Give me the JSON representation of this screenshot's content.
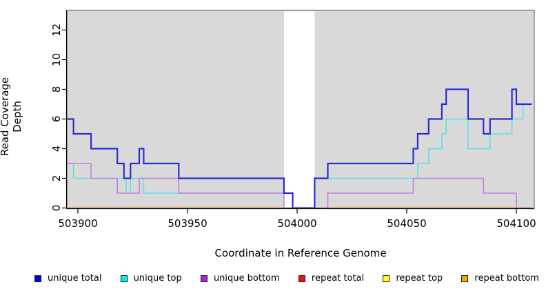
{
  "chart_data": {
    "type": "line",
    "subtype": "step-coverage",
    "title": "",
    "xlabel": "Coordinate in Reference Genome",
    "ylabel": "Read Coverage Depth",
    "xlim": [
      503895,
      504107
    ],
    "ylim": [
      0,
      13.3
    ],
    "x_ticks": [
      503900,
      503950,
      504000,
      504050,
      504100
    ],
    "y_ticks": [
      0,
      2,
      4,
      6,
      8,
      10,
      12
    ],
    "grid": "off",
    "panel_background": "#d9d9d9",
    "gap_region": {
      "from": 503994,
      "to": 504008,
      "color": "#ffffff"
    },
    "border_color": "#777777",
    "axis_color": "#000000",
    "draw_order": [
      3,
      4,
      5,
      1,
      2,
      0
    ],
    "series": [
      {
        "name": "unique total",
        "color": "#2b2bd6",
        "width": 2.2,
        "points": [
          [
            503895,
            6
          ],
          [
            503898,
            5
          ],
          [
            503906,
            4
          ],
          [
            503918,
            3
          ],
          [
            503921,
            2
          ],
          [
            503924,
            3
          ],
          [
            503928,
            4
          ],
          [
            503930,
            3
          ],
          [
            503946,
            2
          ],
          [
            503994,
            1
          ],
          [
            503998,
            0
          ],
          [
            504008,
            2
          ],
          [
            504014,
            3
          ],
          [
            504053,
            4
          ],
          [
            504055,
            5
          ],
          [
            504060,
            6
          ],
          [
            504066,
            7
          ],
          [
            504068,
            8
          ],
          [
            504078,
            6
          ],
          [
            504085,
            5
          ],
          [
            504088,
            6
          ],
          [
            504098,
            8
          ],
          [
            504100,
            7
          ]
        ]
      },
      {
        "name": "unique top",
        "color": "#5ce0ea",
        "width": 1.6,
        "points": [
          [
            503895,
            3
          ],
          [
            503898,
            2
          ],
          [
            503922,
            1
          ],
          [
            503924,
            2
          ],
          [
            503930,
            1
          ],
          [
            503998,
            0
          ],
          [
            504008,
            2
          ],
          [
            504055,
            3
          ],
          [
            504060,
            4
          ],
          [
            504066,
            5
          ],
          [
            504068,
            6
          ],
          [
            504078,
            4
          ],
          [
            504088,
            5
          ],
          [
            504098,
            6
          ],
          [
            504103,
            7
          ]
        ]
      },
      {
        "name": "unique bottom",
        "color": "#c17fe0",
        "width": 1.6,
        "points": [
          [
            503895,
            3
          ],
          [
            503906,
            2
          ],
          [
            503918,
            1
          ],
          [
            503928,
            2
          ],
          [
            503946,
            1
          ],
          [
            503994,
            0
          ],
          [
            504014,
            1
          ],
          [
            504053,
            2
          ],
          [
            504085,
            1
          ],
          [
            504100,
            0
          ]
        ]
      },
      {
        "name": "repeat total",
        "color": "#dd2222",
        "width": 1.6,
        "points": [
          [
            503895,
            0
          ]
        ]
      },
      {
        "name": "repeat top",
        "color": "#ffff00",
        "width": 1.6,
        "points": [
          [
            503895,
            0
          ]
        ]
      },
      {
        "name": "repeat bottom",
        "color": "#ff9d2e",
        "width": 1.8,
        "points": [
          [
            503895,
            0
          ]
        ]
      }
    ],
    "legend": [
      {
        "label": "unique total",
        "color": "#0000ee"
      },
      {
        "label": "unique top",
        "color": "#00eeee"
      },
      {
        "label": "unique bottom",
        "color": "#aa22dd"
      },
      {
        "label": "repeat total",
        "color": "#ee1111"
      },
      {
        "label": "repeat top",
        "color": "#ffff22"
      },
      {
        "label": "repeat bottom",
        "color": "#ffa500"
      }
    ]
  }
}
